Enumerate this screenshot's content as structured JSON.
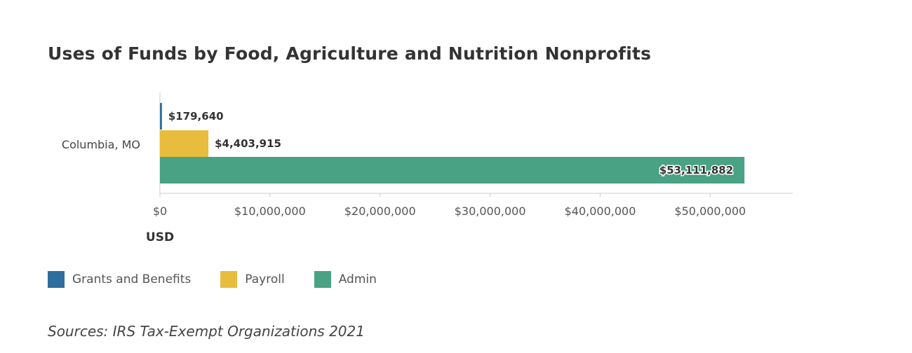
{
  "chart_data": {
    "type": "bar",
    "orientation": "horizontal",
    "title": "Uses of Funds by Food, Agriculture and Nutrition Nonprofits",
    "categories": [
      "Columbia, MO"
    ],
    "series": [
      {
        "name": "Grants and Benefits",
        "color": "#2e6e9e",
        "values": [
          179640
        ],
        "label": "$179,640"
      },
      {
        "name": "Payroll",
        "color": "#e8bd3e",
        "values": [
          4403915
        ],
        "label": "$4,403,915"
      },
      {
        "name": "Admin",
        "color": "#48a283",
        "values": [
          53111882
        ],
        "label": "$53,111,882"
      }
    ],
    "xlabel": "USD",
    "ylabel": "",
    "xlim": [
      0,
      57500000
    ],
    "ticks": [
      {
        "value": 0,
        "label": "$0"
      },
      {
        "value": 10000000,
        "label": "$10,000,000"
      },
      {
        "value": 20000000,
        "label": "$20,000,000"
      },
      {
        "value": 30000000,
        "label": "$30,000,000"
      },
      {
        "value": 40000000,
        "label": "$40,000,000"
      },
      {
        "value": 50000000,
        "label": "$50,000,000"
      }
    ],
    "grid": false,
    "legend_position": "bottom-left"
  },
  "legend": [
    {
      "label": "Grants and Benefits",
      "color": "#2e6e9e"
    },
    {
      "label": "Payroll",
      "color": "#e8bd3e"
    },
    {
      "label": "Admin",
      "color": "#48a283"
    }
  ],
  "source": "Sources: IRS Tax-Exempt Organizations 2021"
}
